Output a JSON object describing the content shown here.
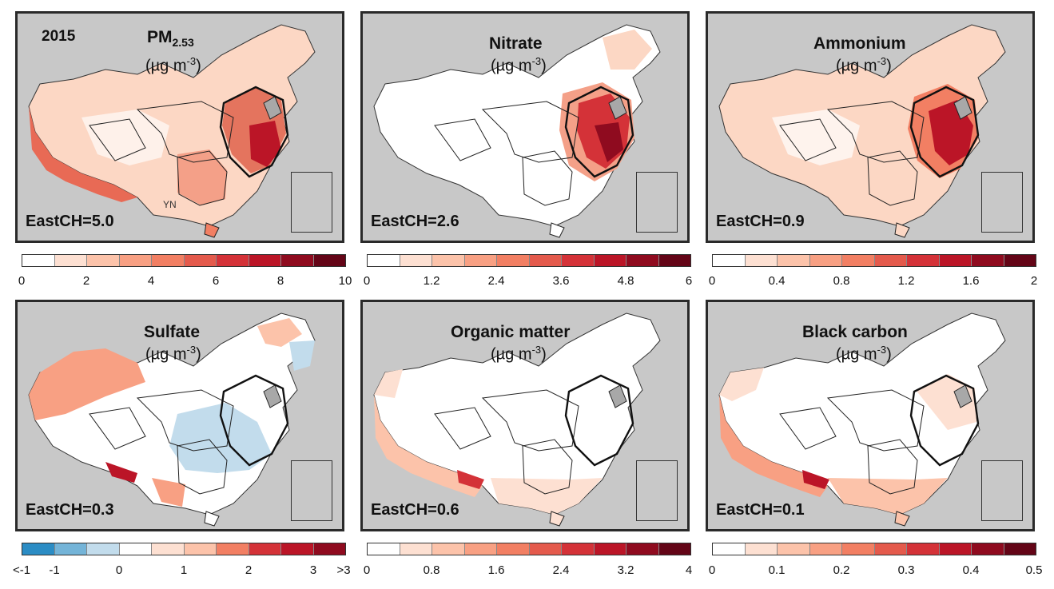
{
  "year_label": "2015",
  "unit": {
    "base": "(µg m",
    "exp": "-3",
    "close": ")"
  },
  "province_label": "YN",
  "panels": [
    {
      "title": "PM",
      "title_sub": "2.5",
      "east": "EastCH=5.0"
    },
    {
      "title": "Nitrate",
      "east": "EastCH=2.6"
    },
    {
      "title": "Ammonium",
      "east": "EastCH=0.9"
    },
    {
      "title": "Sulfate",
      "east": "EastCH=0.3"
    },
    {
      "title": "Organic matter",
      "east": "EastCH=0.6"
    },
    {
      "title": "Black carbon",
      "east": "EastCH=0.1"
    }
  ],
  "colorbars": [
    {
      "ticks": [
        "0",
        "2",
        "4",
        "6",
        "8",
        "10"
      ]
    },
    {
      "ticks": [
        "0",
        "1.2",
        "2.4",
        "3.6",
        "4.8",
        "6"
      ]
    },
    {
      "ticks": [
        "0",
        "0.4",
        "0.8",
        "1.2",
        "1.6",
        "2"
      ]
    },
    {
      "ticks": [
        "<-1",
        "-1",
        "0",
        "1",
        "2",
        "3",
        ">3"
      ]
    },
    {
      "ticks": [
        "0",
        "0.8",
        "1.6",
        "2.4",
        "3.2",
        "4"
      ]
    },
    {
      "ticks": [
        "0",
        "0.1",
        "0.2",
        "0.3",
        "0.4",
        "0.5"
      ]
    }
  ],
  "colors": {
    "background": "#c8c8c8",
    "reds": [
      "#ffffff",
      "#fde0d2",
      "#fcc3aa",
      "#f8a083",
      "#f27f63",
      "#e45a4c",
      "#d43238",
      "#bb1527",
      "#8f0b1f",
      "#640517"
    ],
    "diverging": [
      "#2b8cc4",
      "#74b4d8",
      "#c2dcec",
      "#ffffff",
      "#fde0d2",
      "#fcc3aa",
      "#f27f63",
      "#d43238",
      "#bb1527",
      "#8f0b1f"
    ]
  }
}
